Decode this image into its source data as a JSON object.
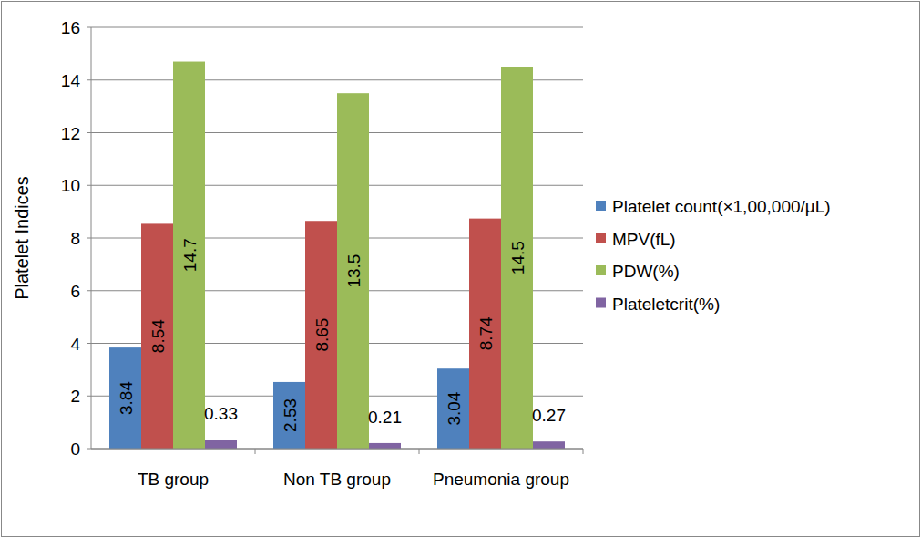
{
  "chart_data": {
    "type": "bar",
    "y_label": "Platelet Indices",
    "categories": [
      "TB group",
      "Non TB group",
      "Pneumonia group"
    ],
    "series": [
      {
        "name": "Platelet count(×1,00,000/µL)",
        "color": "#4f81bd",
        "values": [
          3.84,
          2.53,
          3.04
        ]
      },
      {
        "name": "MPV(fL)",
        "color": "#c0504d",
        "values": [
          8.54,
          8.65,
          8.74
        ]
      },
      {
        "name": "PDW(%)",
        "color": "#9bbb59",
        "values": [
          14.7,
          13.5,
          14.5
        ]
      },
      {
        "name": "Plateletcrit(%)",
        "color": "#8064a2",
        "values": [
          0.33,
          0.21,
          0.27
        ]
      }
    ],
    "ylim": [
      0,
      16
    ],
    "yticks": [
      0,
      2,
      4,
      6,
      8,
      10,
      12,
      14,
      16
    ],
    "grid": true,
    "legend": "right",
    "data_labels": true
  }
}
